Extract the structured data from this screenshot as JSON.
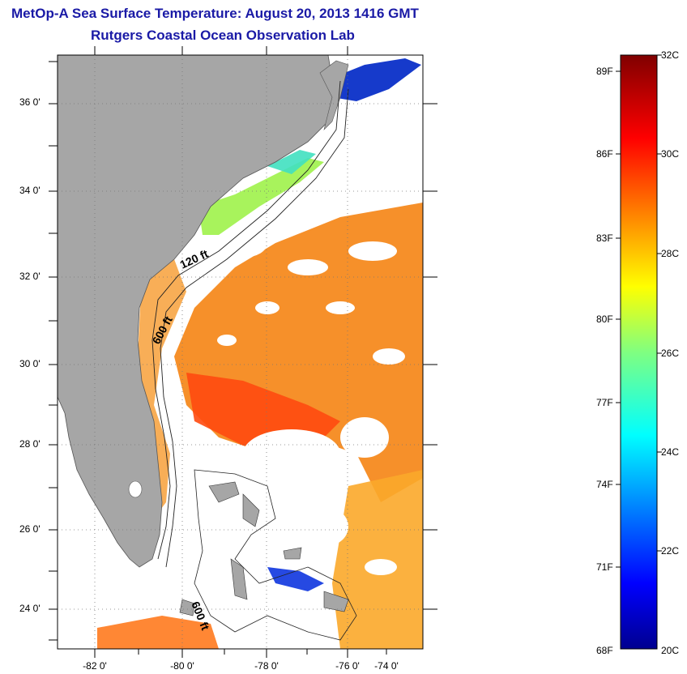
{
  "title": {
    "line1": "MetOp-A Sea Surface Temperature:  August 20, 2013 1416 GMT",
    "line2": "Rutgers Coastal Ocean Observation Lab"
  },
  "map": {
    "latitude_labels": [
      "36 0'",
      "34 0'",
      "32 0'",
      "30 0'",
      "28 0'",
      "26 0'",
      "24 0'"
    ],
    "longitude_labels": [
      "-82 0'",
      "-80 0'",
      "-78 0'",
      "-76 0'",
      "-74 0'"
    ],
    "isobath_labels": [
      "120 ft",
      "600 ft",
      "600 ft"
    ],
    "colors": {
      "land": "#a6a6a6",
      "no_data": "#ffffff"
    }
  },
  "colorbar": {
    "fahrenheit_labels": [
      "89F",
      "86F",
      "83F",
      "80F",
      "77F",
      "74F",
      "71F",
      "68F"
    ],
    "celsius_labels": [
      "32C",
      "30C",
      "28C",
      "26C",
      "24C",
      "22C",
      "20C"
    ],
    "range_c": [
      20,
      32
    ],
    "colormap": "jet"
  }
}
